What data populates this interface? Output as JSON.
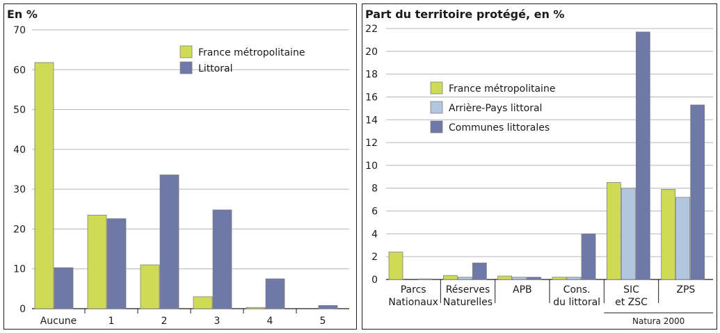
{
  "chart_data": [
    {
      "type": "bar",
      "title": "En %",
      "ylim": [
        0,
        70
      ],
      "yticks": [
        0,
        10,
        20,
        30,
        40,
        50,
        60,
        70
      ],
      "grid": true,
      "legend_position": "top-right",
      "categories": [
        "Aucune",
        "1",
        "2",
        "3",
        "4",
        "5"
      ],
      "series": [
        {
          "name": "France métropolitaine",
          "color": "#cfdb57",
          "values": [
            61.8,
            23.5,
            11.0,
            3.0,
            0.3,
            0.0
          ]
        },
        {
          "name": "Littoral",
          "color": "#6e79a8",
          "values": [
            10.3,
            22.6,
            33.6,
            24.8,
            7.5,
            0.8
          ]
        }
      ]
    },
    {
      "type": "bar",
      "title": "Part du territoire protégé, en %",
      "ylim": [
        0,
        22
      ],
      "yticks": [
        0,
        2,
        4,
        6,
        8,
        10,
        12,
        14,
        16,
        18,
        20,
        22
      ],
      "grid": true,
      "legend_position": "top-left",
      "categories": [
        [
          "Parcs",
          "Nationaux"
        ],
        [
          "Réserves",
          "Naturelles"
        ],
        [
          "APB"
        ],
        [
          "Cons.",
          "du littoral"
        ],
        [
          "SIC",
          "et ZSC"
        ],
        [
          "ZPS"
        ]
      ],
      "group_label": "Natura 2000",
      "series": [
        {
          "name": "France métropolitaine",
          "color": "#cfdb57",
          "values": [
            2.4,
            0.35,
            0.3,
            0.2,
            8.5,
            7.9
          ]
        },
        {
          "name": "Arrière-Pays littoral",
          "color": "#b3c6e0",
          "values": [
            0.0,
            0.2,
            0.2,
            0.2,
            8.0,
            7.2
          ]
        },
        {
          "name": "Communes littorales",
          "color": "#6e79a8",
          "values": [
            0.05,
            1.45,
            0.2,
            4.0,
            21.7,
            15.3
          ]
        }
      ]
    }
  ]
}
